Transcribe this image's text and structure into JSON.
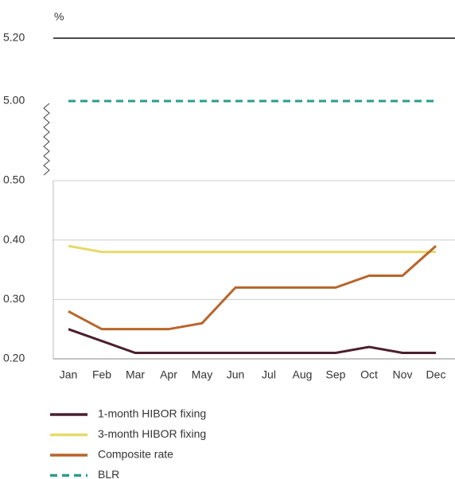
{
  "chart_data": {
    "type": "line",
    "y_label": "%",
    "categories": [
      "Jan",
      "Feb",
      "Mar",
      "Apr",
      "May",
      "Jun",
      "Jul",
      "Aug",
      "Sep",
      "Oct",
      "Nov",
      "Dec"
    ],
    "ylim": [
      0.2,
      0.5
    ],
    "yticks": [
      {
        "value": 0.2,
        "label": "0.20"
      },
      {
        "value": 0.3,
        "label": "0.30"
      },
      {
        "value": 0.4,
        "label": "0.40"
      },
      {
        "value": 0.5,
        "label": "0.50"
      }
    ],
    "y2lim": [
      5.0,
      5.2
    ],
    "y2ticks": [
      {
        "value": 5.0,
        "label": "5.00"
      },
      {
        "value": 5.2,
        "label": "5.20"
      }
    ],
    "grid": true,
    "series": [
      {
        "name": "1-month HIBOR fixing",
        "color": "#4a2030",
        "values": [
          0.25,
          0.23,
          0.21,
          0.21,
          0.21,
          0.21,
          0.21,
          0.21,
          0.21,
          0.22,
          0.21,
          0.21
        ]
      },
      {
        "name": "3-month HIBOR fixing",
        "color": "#e6da6a",
        "values": [
          0.39,
          0.38,
          0.38,
          0.38,
          0.38,
          0.38,
          0.38,
          0.38,
          0.38,
          0.38,
          0.38,
          0.38
        ]
      },
      {
        "name": "Composite rate",
        "color": "#b8652a",
        "values": [
          0.28,
          0.25,
          0.25,
          0.25,
          0.26,
          0.32,
          0.32,
          0.32,
          0.32,
          0.34,
          0.34,
          0.39
        ]
      },
      {
        "name": "BLR",
        "color": "#2a9d8a",
        "dashed": true,
        "axis": "y2",
        "values": [
          5.0,
          5.0,
          5.0,
          5.0,
          5.0,
          5.0,
          5.0,
          5.0,
          5.0,
          5.0,
          5.0,
          5.0
        ]
      }
    ]
  }
}
